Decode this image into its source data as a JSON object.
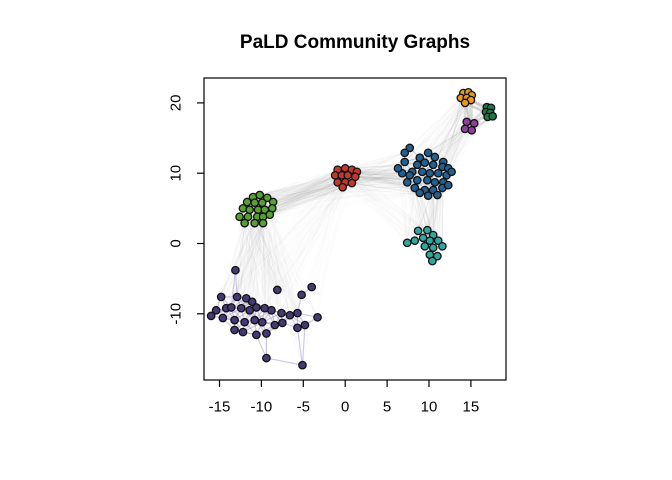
{
  "chart_data": {
    "type": "scatter",
    "title": "PaLD Community Graphs",
    "xlabel": "",
    "ylabel": "",
    "x_ticks": [
      -15,
      -10,
      -5,
      0,
      5,
      10,
      15
    ],
    "y_ticks": [
      -10,
      0,
      10,
      20
    ],
    "xlim": [
      -16.9,
      19.2
    ],
    "ylim": [
      -19.4,
      23.5
    ],
    "grid": false,
    "legend": "none",
    "background_color": "#ffffff",
    "box_color": "#000000",
    "node_outline_color": "#111111",
    "weak_tie_color": "#8a8a8a",
    "seed": 7,
    "communities": [
      {
        "name": "purple",
        "color": "#463a75",
        "edge_color": "#a294cc",
        "edge_opacity": 0.5,
        "edge_width": 1.2,
        "max_edge_dist": 2.7,
        "points": [
          [
            -13.1,
            -3.8
          ],
          [
            -4.0,
            -6.2
          ],
          [
            -14.8,
            -7.6
          ],
          [
            -12.9,
            -7.6
          ],
          [
            -11.8,
            -7.8
          ],
          [
            -11.1,
            -8.3
          ],
          [
            -8.1,
            -6.6
          ],
          [
            -5.2,
            -7.3
          ],
          [
            -15.4,
            -9.5
          ],
          [
            -14.2,
            -9.2
          ],
          [
            -13.6,
            -9.1
          ],
          [
            -12.4,
            -9.2
          ],
          [
            -11.4,
            -9.5
          ],
          [
            -10.6,
            -9.1
          ],
          [
            -9.6,
            -9.2
          ],
          [
            -8.8,
            -9.5
          ],
          [
            -7.6,
            -9.9
          ],
          [
            -6.6,
            -10.2
          ],
          [
            -5.7,
            -9.9
          ],
          [
            -4.8,
            -11.6
          ],
          [
            -3.3,
            -10.5
          ],
          [
            -16.0,
            -10.3
          ],
          [
            -14.6,
            -10.6
          ],
          [
            -13.2,
            -10.9
          ],
          [
            -12.0,
            -11.2
          ],
          [
            -10.8,
            -10.9
          ],
          [
            -9.9,
            -11.2
          ],
          [
            -8.4,
            -11.6
          ],
          [
            -7.5,
            -11.3
          ],
          [
            -13.2,
            -12.3
          ],
          [
            -12.2,
            -12.6
          ],
          [
            -10.6,
            -13.0
          ],
          [
            -9.4,
            -12.8
          ],
          [
            -5.7,
            -12.0
          ],
          [
            -9.4,
            -16.3
          ],
          [
            -5.1,
            -17.3
          ]
        ],
        "extra_edges": [
          [
            0,
            3
          ],
          [
            0,
            10
          ],
          [
            7,
            18
          ],
          [
            34,
            31
          ],
          [
            34,
            32
          ],
          [
            34,
            35
          ],
          [
            35,
            33
          ],
          [
            35,
            19
          ]
        ]
      },
      {
        "name": "green",
        "color": "#58a033",
        "edge_color": "#c9c9c9",
        "edge_opacity": 0.5,
        "edge_width": 1,
        "max_edge_dist": 1.4,
        "points": [
          [
            -11.0,
            6.6
          ],
          [
            -10.2,
            6.9
          ],
          [
            -9.3,
            6.5
          ],
          [
            -11.7,
            5.9
          ],
          [
            -10.8,
            5.8
          ],
          [
            -9.9,
            5.8
          ],
          [
            -8.6,
            5.9
          ],
          [
            -12.2,
            5.0
          ],
          [
            -11.4,
            4.8
          ],
          [
            -10.4,
            4.8
          ],
          [
            -9.6,
            4.8
          ],
          [
            -8.7,
            5.0
          ],
          [
            -12.6,
            3.8
          ],
          [
            -11.6,
            3.8
          ],
          [
            -10.5,
            3.8
          ],
          [
            -9.8,
            3.8
          ],
          [
            -9.0,
            4.1
          ],
          [
            -12.0,
            2.9
          ],
          [
            -10.8,
            2.9
          ],
          [
            -9.8,
            2.9
          ]
        ],
        "extra_edges": []
      },
      {
        "name": "red",
        "color": "#c2382e",
        "edge_color": "#c9c9c9",
        "edge_opacity": 0.5,
        "edge_width": 1,
        "max_edge_dist": 1.6,
        "points": [
          [
            -0.9,
            10.5
          ],
          [
            0.0,
            10.7
          ],
          [
            0.8,
            10.5
          ],
          [
            1.4,
            10.2
          ],
          [
            -1.2,
            9.7
          ],
          [
            -0.4,
            9.7
          ],
          [
            0.3,
            9.7
          ],
          [
            1.2,
            9.5
          ],
          [
            -0.9,
            8.7
          ],
          [
            0.0,
            8.7
          ],
          [
            0.8,
            8.6
          ],
          [
            -0.3,
            8.0
          ]
        ],
        "extra_edges": []
      },
      {
        "name": "blue",
        "color": "#24608f",
        "edge_color": "#9fbcd8",
        "edge_opacity": 0.75,
        "edge_width": 1.1,
        "max_edge_dist": 1.9,
        "points": [
          [
            7.7,
            13.6
          ],
          [
            9.9,
            12.9
          ],
          [
            8.9,
            12.2
          ],
          [
            10.7,
            12.3
          ],
          [
            11.7,
            11.6
          ],
          [
            7.1,
            11.6
          ],
          [
            8.6,
            11.2
          ],
          [
            9.5,
            11.5
          ],
          [
            10.5,
            11.2
          ],
          [
            11.6,
            10.9
          ],
          [
            12.3,
            10.7
          ],
          [
            6.8,
            10.0
          ],
          [
            8.0,
            10.2
          ],
          [
            9.2,
            10.2
          ],
          [
            10.1,
            10.0
          ],
          [
            11.1,
            10.0
          ],
          [
            12.1,
            9.7
          ],
          [
            7.4,
            8.7
          ],
          [
            8.6,
            9.0
          ],
          [
            9.8,
            9.0
          ],
          [
            10.7,
            8.7
          ],
          [
            11.7,
            8.7
          ],
          [
            8.3,
            7.9
          ],
          [
            9.5,
            7.6
          ],
          [
            10.5,
            7.6
          ],
          [
            11.6,
            7.9
          ],
          [
            6.3,
            10.7
          ],
          [
            12.7,
            10.2
          ],
          [
            7.7,
            9.7
          ],
          [
            8.9,
            7.2
          ],
          [
            11.0,
            6.9
          ],
          [
            9.9,
            6.8
          ],
          [
            12.3,
            8.3
          ],
          [
            7.1,
            12.9
          ]
        ],
        "extra_edges": []
      },
      {
        "name": "teal",
        "color": "#2fa79e",
        "edge_color": "#c9c9c9",
        "edge_opacity": 0.6,
        "edge_width": 1.2,
        "max_edge_dist": 1.6,
        "points": [
          [
            8.7,
            1.8
          ],
          [
            9.8,
            1.9
          ],
          [
            10.5,
            1.2
          ],
          [
            9.3,
            0.8
          ],
          [
            7.4,
            0.1
          ],
          [
            8.3,
            0.4
          ],
          [
            10.1,
            0.4
          ],
          [
            11.1,
            0.4
          ],
          [
            9.5,
            -0.4
          ],
          [
            10.5,
            -0.6
          ],
          [
            11.6,
            -0.4
          ],
          [
            10.1,
            -1.6
          ],
          [
            11.0,
            -1.8
          ],
          [
            10.4,
            -2.5
          ]
        ],
        "extra_edges": []
      },
      {
        "name": "orange",
        "color": "#e69b1f",
        "edge_color": "#bfbfbf",
        "edge_opacity": 0.7,
        "edge_width": 1.8,
        "max_edge_dist": 1.4,
        "points": [
          [
            14.1,
            21.4
          ],
          [
            14.7,
            21.5
          ],
          [
            15.1,
            21.1
          ],
          [
            13.8,
            20.7
          ],
          [
            14.5,
            20.7
          ],
          [
            15.0,
            20.4
          ],
          [
            14.3,
            20.0
          ]
        ],
        "extra_edges": []
      },
      {
        "name": "darkgreen",
        "color": "#1b7a48",
        "edge_color": "#bfbfbf",
        "edge_opacity": 0.7,
        "edge_width": 1.8,
        "max_edge_dist": 1.3,
        "points": [
          [
            16.9,
            19.4
          ],
          [
            17.4,
            19.3
          ],
          [
            16.8,
            18.7
          ],
          [
            17.3,
            18.6
          ],
          [
            17.0,
            18.0
          ],
          [
            17.6,
            18.1
          ]
        ],
        "extra_edges": []
      },
      {
        "name": "magenta",
        "color": "#8e3e9e",
        "edge_color": "#bfbfbf",
        "edge_opacity": 0.7,
        "edge_width": 1.8,
        "max_edge_dist": 1.6,
        "points": [
          [
            14.5,
            17.3
          ],
          [
            15.4,
            17.1
          ],
          [
            14.3,
            16.3
          ],
          [
            15.1,
            16.1
          ]
        ],
        "extra_edges": []
      }
    ],
    "bundles": [
      {
        "from": "purple",
        "to": "green",
        "count": 150,
        "color": "#8a8a8a",
        "opacity": 0.03,
        "width": 1
      },
      {
        "from": "purple",
        "to": "red",
        "count": 70,
        "color": "#8a8a8a",
        "opacity": 0.02,
        "width": 1
      },
      {
        "from": "green",
        "to": "red",
        "count": 130,
        "color": "#8a8a8a",
        "opacity": 0.035,
        "width": 1
      },
      {
        "from": "red",
        "to": "blue",
        "count": 150,
        "color": "#8a8a8a",
        "opacity": 0.035,
        "width": 1
      },
      {
        "from": "green",
        "to": "blue",
        "count": 40,
        "color": "#8a8a8a",
        "opacity": 0.015,
        "width": 1
      },
      {
        "from": "blue",
        "to": "teal",
        "count": 120,
        "color": "#8a8a8a",
        "opacity": 0.035,
        "width": 1
      },
      {
        "from": "red",
        "to": "teal",
        "count": 40,
        "color": "#8a8a8a",
        "opacity": 0.015,
        "width": 1
      },
      {
        "from": "blue",
        "to": "orange",
        "count": 60,
        "color": "#8a8a8a",
        "opacity": 0.03,
        "width": 1
      },
      {
        "from": "blue",
        "to": "magenta",
        "count": 50,
        "color": "#8a8a8a",
        "opacity": 0.03,
        "width": 1
      },
      {
        "from": "blue",
        "to": "darkgreen",
        "count": 25,
        "color": "#8a8a8a",
        "opacity": 0.02,
        "width": 1
      },
      {
        "from": "orange",
        "to": "magenta",
        "count": 5,
        "color": "#c4c4c4",
        "opacity": 0.55,
        "width": 2.4
      },
      {
        "from": "orange",
        "to": "darkgreen",
        "count": 5,
        "color": "#c4c4c4",
        "opacity": 0.55,
        "width": 2.4
      },
      {
        "from": "magenta",
        "to": "darkgreen",
        "count": 4,
        "color": "#c4c4c4",
        "opacity": 0.55,
        "width": 2.4
      }
    ]
  }
}
